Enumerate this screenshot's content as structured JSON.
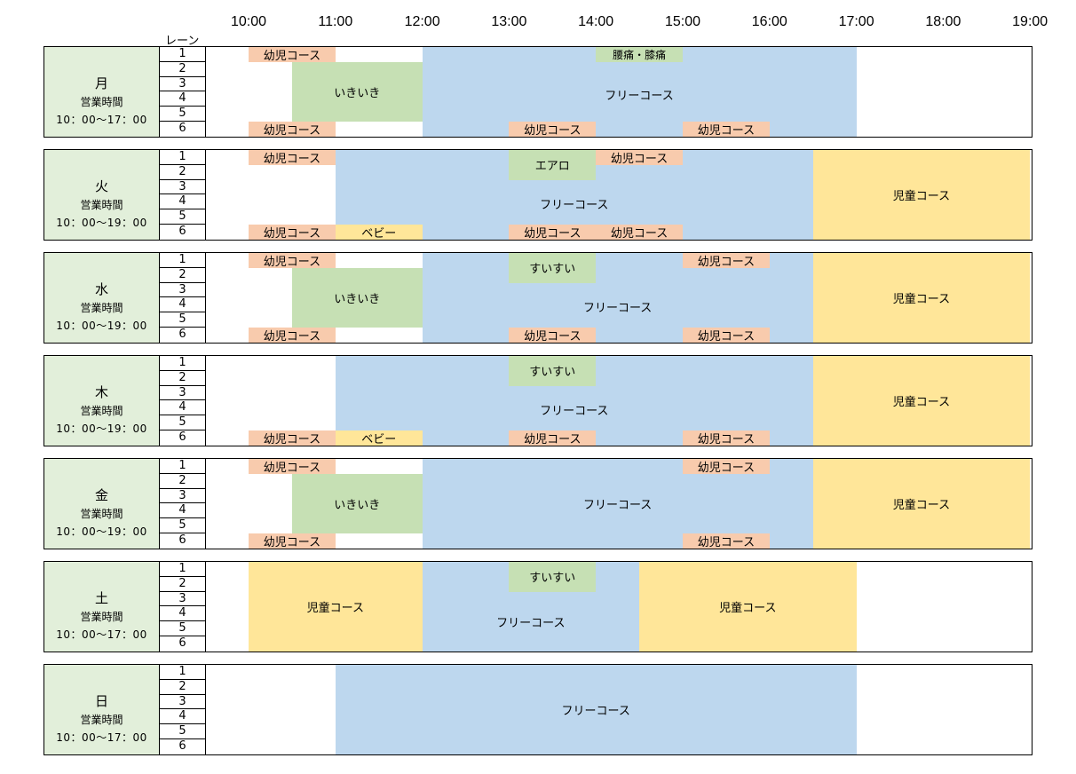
{
  "header": {
    "lane_label": "レーン",
    "hours": [
      "10:00",
      "11:00",
      "12:00",
      "13:00",
      "14:00",
      "15:00",
      "16:00",
      "17:00",
      "18:00",
      "19:00"
    ]
  },
  "lanes": [
    "1",
    "2",
    "3",
    "4",
    "5",
    "6"
  ],
  "colors": {
    "orange": "#f8cbad",
    "green": "#c6e0b4",
    "blue": "#bdd7ee",
    "yellow": "#ffe699",
    "label_bg": "#e2efda"
  },
  "days": [
    {
      "name": "月",
      "sub": "営業時間",
      "hours": "10：00～17：00",
      "blocks": [
        {
          "label": "フリーコース",
          "start": 12,
          "end": 17,
          "ls": 1,
          "le": 6,
          "color": "blue",
          "ty": 3
        },
        {
          "label": "幼児コース",
          "start": 10,
          "end": 11,
          "ls": 1,
          "le": 1,
          "color": "orange"
        },
        {
          "label": "腰痛・膝痛",
          "start": 14,
          "end": 15,
          "ls": 1,
          "le": 1,
          "color": "green",
          "fs": 12
        },
        {
          "label": "いきいき",
          "start": 10.5,
          "end": 12,
          "ls": 2,
          "le": 5,
          "color": "green"
        },
        {
          "label": "幼児コース",
          "start": 10,
          "end": 11,
          "ls": 6,
          "le": 6,
          "color": "orange"
        },
        {
          "label": "幼児コース",
          "start": 13,
          "end": 14,
          "ls": 6,
          "le": 6,
          "color": "orange"
        },
        {
          "label": "幼児コース",
          "start": 15,
          "end": 16,
          "ls": 6,
          "le": 6,
          "color": "orange"
        }
      ]
    },
    {
      "name": "火",
      "sub": "営業時間",
      "hours": "10：00～19：00",
      "blocks": [
        {
          "label": "フリーコース",
          "start": 11,
          "end": 16.5,
          "ls": 1,
          "le": 6,
          "color": "blue",
          "tx": 0,
          "ty": 10
        },
        {
          "label": "児童コース",
          "start": 16.5,
          "end": 19,
          "ls": 1,
          "le": 6,
          "color": "yellow"
        },
        {
          "label": "幼児コース",
          "start": 10,
          "end": 11,
          "ls": 1,
          "le": 1,
          "color": "orange"
        },
        {
          "label": "エアロ",
          "start": 13,
          "end": 14,
          "ls": 1,
          "le": 2,
          "color": "green"
        },
        {
          "label": "幼児コース",
          "start": 14,
          "end": 15,
          "ls": 1,
          "le": 1,
          "color": "orange"
        },
        {
          "label": "幼児コース",
          "start": 10,
          "end": 11,
          "ls": 6,
          "le": 6,
          "color": "orange"
        },
        {
          "label": "ベビー",
          "start": 11,
          "end": 12,
          "ls": 6,
          "le": 6,
          "color": "yellow"
        },
        {
          "label": "幼児コース",
          "start": 13,
          "end": 14,
          "ls": 6,
          "le": 6,
          "color": "orange"
        },
        {
          "label": "幼児コース",
          "start": 14,
          "end": 15,
          "ls": 6,
          "le": 6,
          "color": "orange"
        }
      ]
    },
    {
      "name": "水",
      "sub": "営業時間",
      "hours": "10：00～19：00",
      "blocks": [
        {
          "label": "フリーコース",
          "start": 12,
          "end": 16.5,
          "ls": 1,
          "le": 6,
          "color": "blue",
          "ty": 10
        },
        {
          "label": "児童コース",
          "start": 16.5,
          "end": 19,
          "ls": 1,
          "le": 6,
          "color": "yellow"
        },
        {
          "label": "幼児コース",
          "start": 10,
          "end": 11,
          "ls": 1,
          "le": 1,
          "color": "orange"
        },
        {
          "label": "すいすい",
          "start": 13,
          "end": 14,
          "ls": 1,
          "le": 2,
          "color": "green"
        },
        {
          "label": "幼児コース",
          "start": 15,
          "end": 16,
          "ls": 1,
          "le": 1,
          "color": "orange"
        },
        {
          "label": "いきいき",
          "start": 10.5,
          "end": 12,
          "ls": 2,
          "le": 5,
          "color": "green"
        },
        {
          "label": "幼児コース",
          "start": 10,
          "end": 11,
          "ls": 6,
          "le": 6,
          "color": "orange"
        },
        {
          "label": "幼児コース",
          "start": 13,
          "end": 14,
          "ls": 6,
          "le": 6,
          "color": "orange"
        },
        {
          "label": "幼児コース",
          "start": 15,
          "end": 16,
          "ls": 6,
          "le": 6,
          "color": "orange"
        }
      ]
    },
    {
      "name": "木",
      "sub": "営業時間",
      "hours": "10：00～19：00",
      "blocks": [
        {
          "label": "フリーコース",
          "start": 11,
          "end": 16.5,
          "ls": 1,
          "le": 6,
          "color": "blue",
          "ty": 10
        },
        {
          "label": "児童コース",
          "start": 16.5,
          "end": 19,
          "ls": 1,
          "le": 6,
          "color": "yellow"
        },
        {
          "label": "すいすい",
          "start": 13,
          "end": 14,
          "ls": 1,
          "le": 2,
          "color": "green"
        },
        {
          "label": "幼児コース",
          "start": 10,
          "end": 11,
          "ls": 6,
          "le": 6,
          "color": "orange"
        },
        {
          "label": "ベビー",
          "start": 11,
          "end": 12,
          "ls": 6,
          "le": 6,
          "color": "yellow"
        },
        {
          "label": "幼児コース",
          "start": 13,
          "end": 14,
          "ls": 6,
          "le": 6,
          "color": "orange"
        },
        {
          "label": "幼児コース",
          "start": 15,
          "end": 16,
          "ls": 6,
          "le": 6,
          "color": "orange"
        }
      ]
    },
    {
      "name": "金",
      "sub": "営業時間",
      "hours": "10：00～19：00",
      "blocks": [
        {
          "label": "フリーコース",
          "start": 12,
          "end": 16.5,
          "ls": 1,
          "le": 6,
          "color": "blue"
        },
        {
          "label": "児童コース",
          "start": 16.5,
          "end": 19,
          "ls": 1,
          "le": 6,
          "color": "yellow"
        },
        {
          "label": "幼児コース",
          "start": 10,
          "end": 11,
          "ls": 1,
          "le": 1,
          "color": "orange"
        },
        {
          "label": "幼児コース",
          "start": 15,
          "end": 16,
          "ls": 1,
          "le": 1,
          "color": "orange"
        },
        {
          "label": "いきいき",
          "start": 10.5,
          "end": 12,
          "ls": 2,
          "le": 5,
          "color": "green"
        },
        {
          "label": "幼児コース",
          "start": 10,
          "end": 11,
          "ls": 6,
          "le": 6,
          "color": "orange"
        },
        {
          "label": "幼児コース",
          "start": 15,
          "end": 16,
          "ls": 6,
          "le": 6,
          "color": "orange"
        }
      ]
    },
    {
      "name": "土",
      "sub": "営業時間",
      "hours": "10：00～17：00",
      "blocks": [
        {
          "label": "児童コース",
          "start": 10,
          "end": 12,
          "ls": 1,
          "le": 6,
          "color": "yellow"
        },
        {
          "label": "フリーコース",
          "start": 12,
          "end": 14.5,
          "ls": 1,
          "le": 6,
          "color": "blue",
          "ty": 17
        },
        {
          "label": "児童コース",
          "start": 14.5,
          "end": 17,
          "ls": 1,
          "le": 6,
          "color": "yellow"
        },
        {
          "label": "すいすい",
          "start": 13,
          "end": 14,
          "ls": 1,
          "le": 2,
          "color": "green"
        }
      ]
    },
    {
      "name": "日",
      "sub": "営業時間",
      "hours": "10：00～17：00",
      "blocks": [
        {
          "label": "フリーコース",
          "start": 11,
          "end": 17,
          "ls": 1,
          "le": 6,
          "color": "blue"
        }
      ]
    }
  ]
}
